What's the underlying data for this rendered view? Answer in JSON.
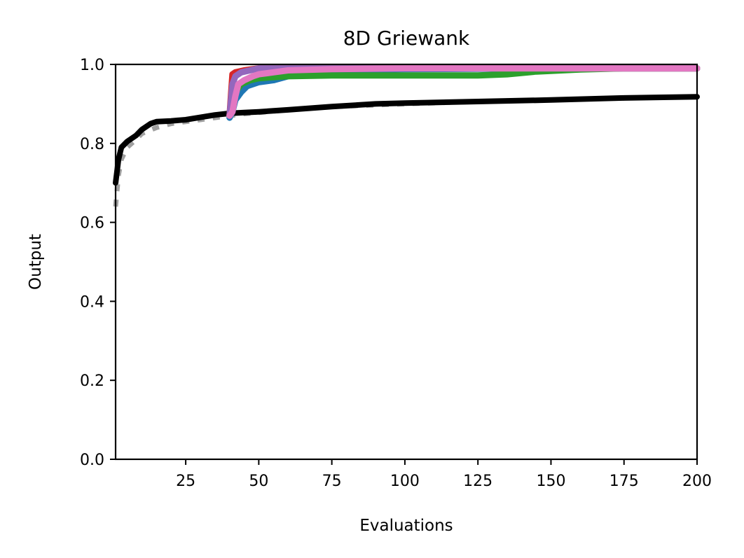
{
  "chart_data": {
    "type": "line",
    "title": "8D Griewank",
    "xlabel": "Evaluations",
    "ylabel": "Output",
    "xlim": [
      1,
      200
    ],
    "ylim": [
      0.0,
      1.0
    ],
    "xticks": [
      25,
      50,
      75,
      100,
      125,
      150,
      175,
      200
    ],
    "yticks": [
      0.0,
      0.2,
      0.4,
      0.6,
      0.8,
      1.0
    ],
    "grid": false,
    "legend": "none",
    "series": [
      {
        "color": "#a0a0a0",
        "style": "dotted",
        "x": [
          1,
          2,
          3,
          5,
          8,
          10,
          15,
          20,
          25,
          30,
          35,
          40,
          45,
          50,
          60,
          75,
          100,
          125,
          150,
          175,
          200
        ],
        "y": [
          0.64,
          0.72,
          0.76,
          0.79,
          0.81,
          0.825,
          0.84,
          0.85,
          0.855,
          0.86,
          0.865,
          0.87,
          0.875,
          0.878,
          0.885,
          0.893,
          0.9,
          0.906,
          0.91,
          0.915,
          0.918
        ]
      },
      {
        "color": "#000000",
        "style": "solid",
        "x": [
          1,
          2,
          3,
          5,
          8,
          10,
          13,
          15,
          20,
          25,
          30,
          35,
          40,
          45,
          50,
          60,
          75,
          90,
          100,
          125,
          150,
          175,
          200
        ],
        "y": [
          0.7,
          0.76,
          0.79,
          0.805,
          0.82,
          0.835,
          0.85,
          0.855,
          0.857,
          0.86,
          0.866,
          0.872,
          0.876,
          0.878,
          0.88,
          0.885,
          0.893,
          0.9,
          0.902,
          0.906,
          0.91,
          0.915,
          0.918
        ]
      },
      {
        "color": "#d62728",
        "style": "solid",
        "x": [
          40,
          41,
          42,
          45,
          50,
          60,
          100,
          150,
          200
        ],
        "y": [
          0.87,
          0.975,
          0.98,
          0.985,
          0.99,
          0.99,
          0.99,
          0.99,
          0.99
        ]
      },
      {
        "color": "#1f77b4",
        "style": "solid",
        "x": [
          40,
          41,
          42,
          44,
          46,
          50,
          55,
          60,
          65,
          75,
          100,
          150,
          200
        ],
        "y": [
          0.865,
          0.88,
          0.91,
          0.93,
          0.945,
          0.955,
          0.96,
          0.97,
          0.98,
          0.985,
          0.988,
          0.99,
          0.99
        ]
      },
      {
        "color": "#2ca02c",
        "style": "solid",
        "x": [
          40,
          41,
          42,
          44,
          47,
          50,
          60,
          75,
          100,
          125,
          135,
          145,
          160,
          175,
          200
        ],
        "y": [
          0.87,
          0.9,
          0.93,
          0.95,
          0.96,
          0.965,
          0.97,
          0.972,
          0.972,
          0.972,
          0.975,
          0.982,
          0.987,
          0.99,
          0.99
        ]
      },
      {
        "color": "#9467bd",
        "style": "solid",
        "x": [
          40,
          41,
          42,
          44,
          47,
          50,
          60,
          100,
          200
        ],
        "y": [
          0.87,
          0.95,
          0.97,
          0.98,
          0.985,
          0.99,
          0.99,
          0.99,
          0.99
        ]
      },
      {
        "color": "#e377c2",
        "style": "solid",
        "x": [
          40,
          41,
          42,
          43,
          45,
          48,
          50,
          55,
          60,
          75,
          100,
          150,
          200
        ],
        "y": [
          0.87,
          0.88,
          0.92,
          0.95,
          0.96,
          0.97,
          0.975,
          0.98,
          0.985,
          0.988,
          0.99,
          0.99,
          0.99
        ]
      }
    ]
  }
}
